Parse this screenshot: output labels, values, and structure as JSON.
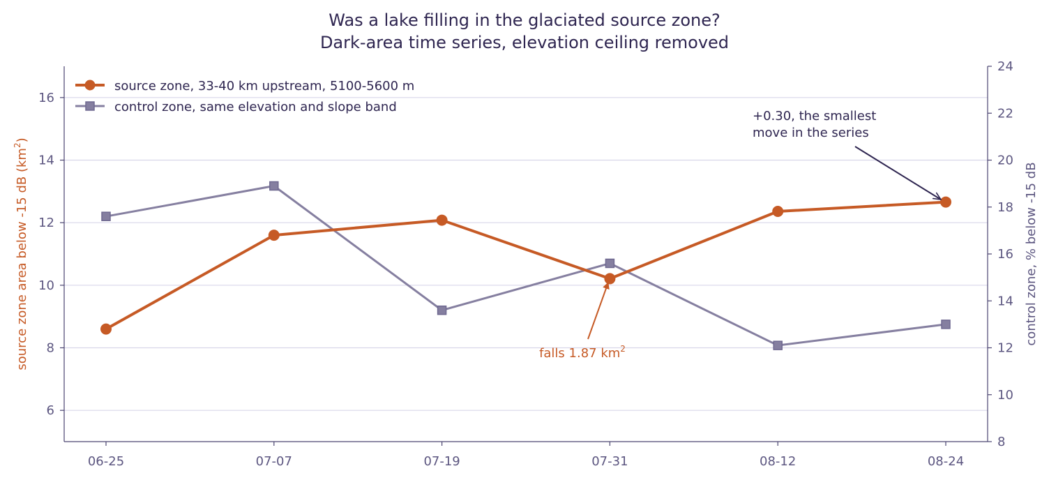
{
  "chart_data": {
    "type": "line",
    "title": "Was a lake filling in the glaciated source zone?",
    "subtitle": "Dark-area time series, elevation ceiling removed",
    "categories": [
      "06-25",
      "07-07",
      "07-19",
      "07-31",
      "08-12",
      "08-24"
    ],
    "y_left": {
      "label_main": "source zone area below -15 dB (km",
      "label_sup": "2",
      "label_end": ")",
      "ylim": [
        5,
        17
      ],
      "ticks": [
        6,
        8,
        10,
        12,
        14,
        16
      ]
    },
    "y_right": {
      "label": "control zone, % below -15 dB",
      "ylim": [
        8,
        24
      ],
      "ticks": [
        8,
        10,
        12,
        14,
        16,
        18,
        20,
        22,
        24
      ]
    },
    "grid": true,
    "legend_position": "top-left",
    "series": [
      {
        "name": "source zone, 33-40 km upstream, 5100-5600 m",
        "axis": "left",
        "marker": "circle",
        "color": "#c65a25",
        "values": [
          8.6,
          11.6,
          12.08,
          10.21,
          12.36,
          12.66
        ]
      },
      {
        "name": "control zone, same elevation and slope band",
        "axis": "right",
        "marker": "square",
        "color": "#857fa0",
        "values": [
          17.6,
          18.9,
          13.6,
          15.6,
          12.1,
          13.0
        ]
      }
    ],
    "annotations": [
      {
        "text_main": "falls 1.87 km",
        "text_sup": "2",
        "color": "#c65a25",
        "target_category": "07-31",
        "target_series": 0
      },
      {
        "lines": [
          "+0.30, the smallest",
          "move in the series"
        ],
        "color": "#2e2550",
        "target_category": "08-24",
        "target_series": 0
      }
    ]
  }
}
